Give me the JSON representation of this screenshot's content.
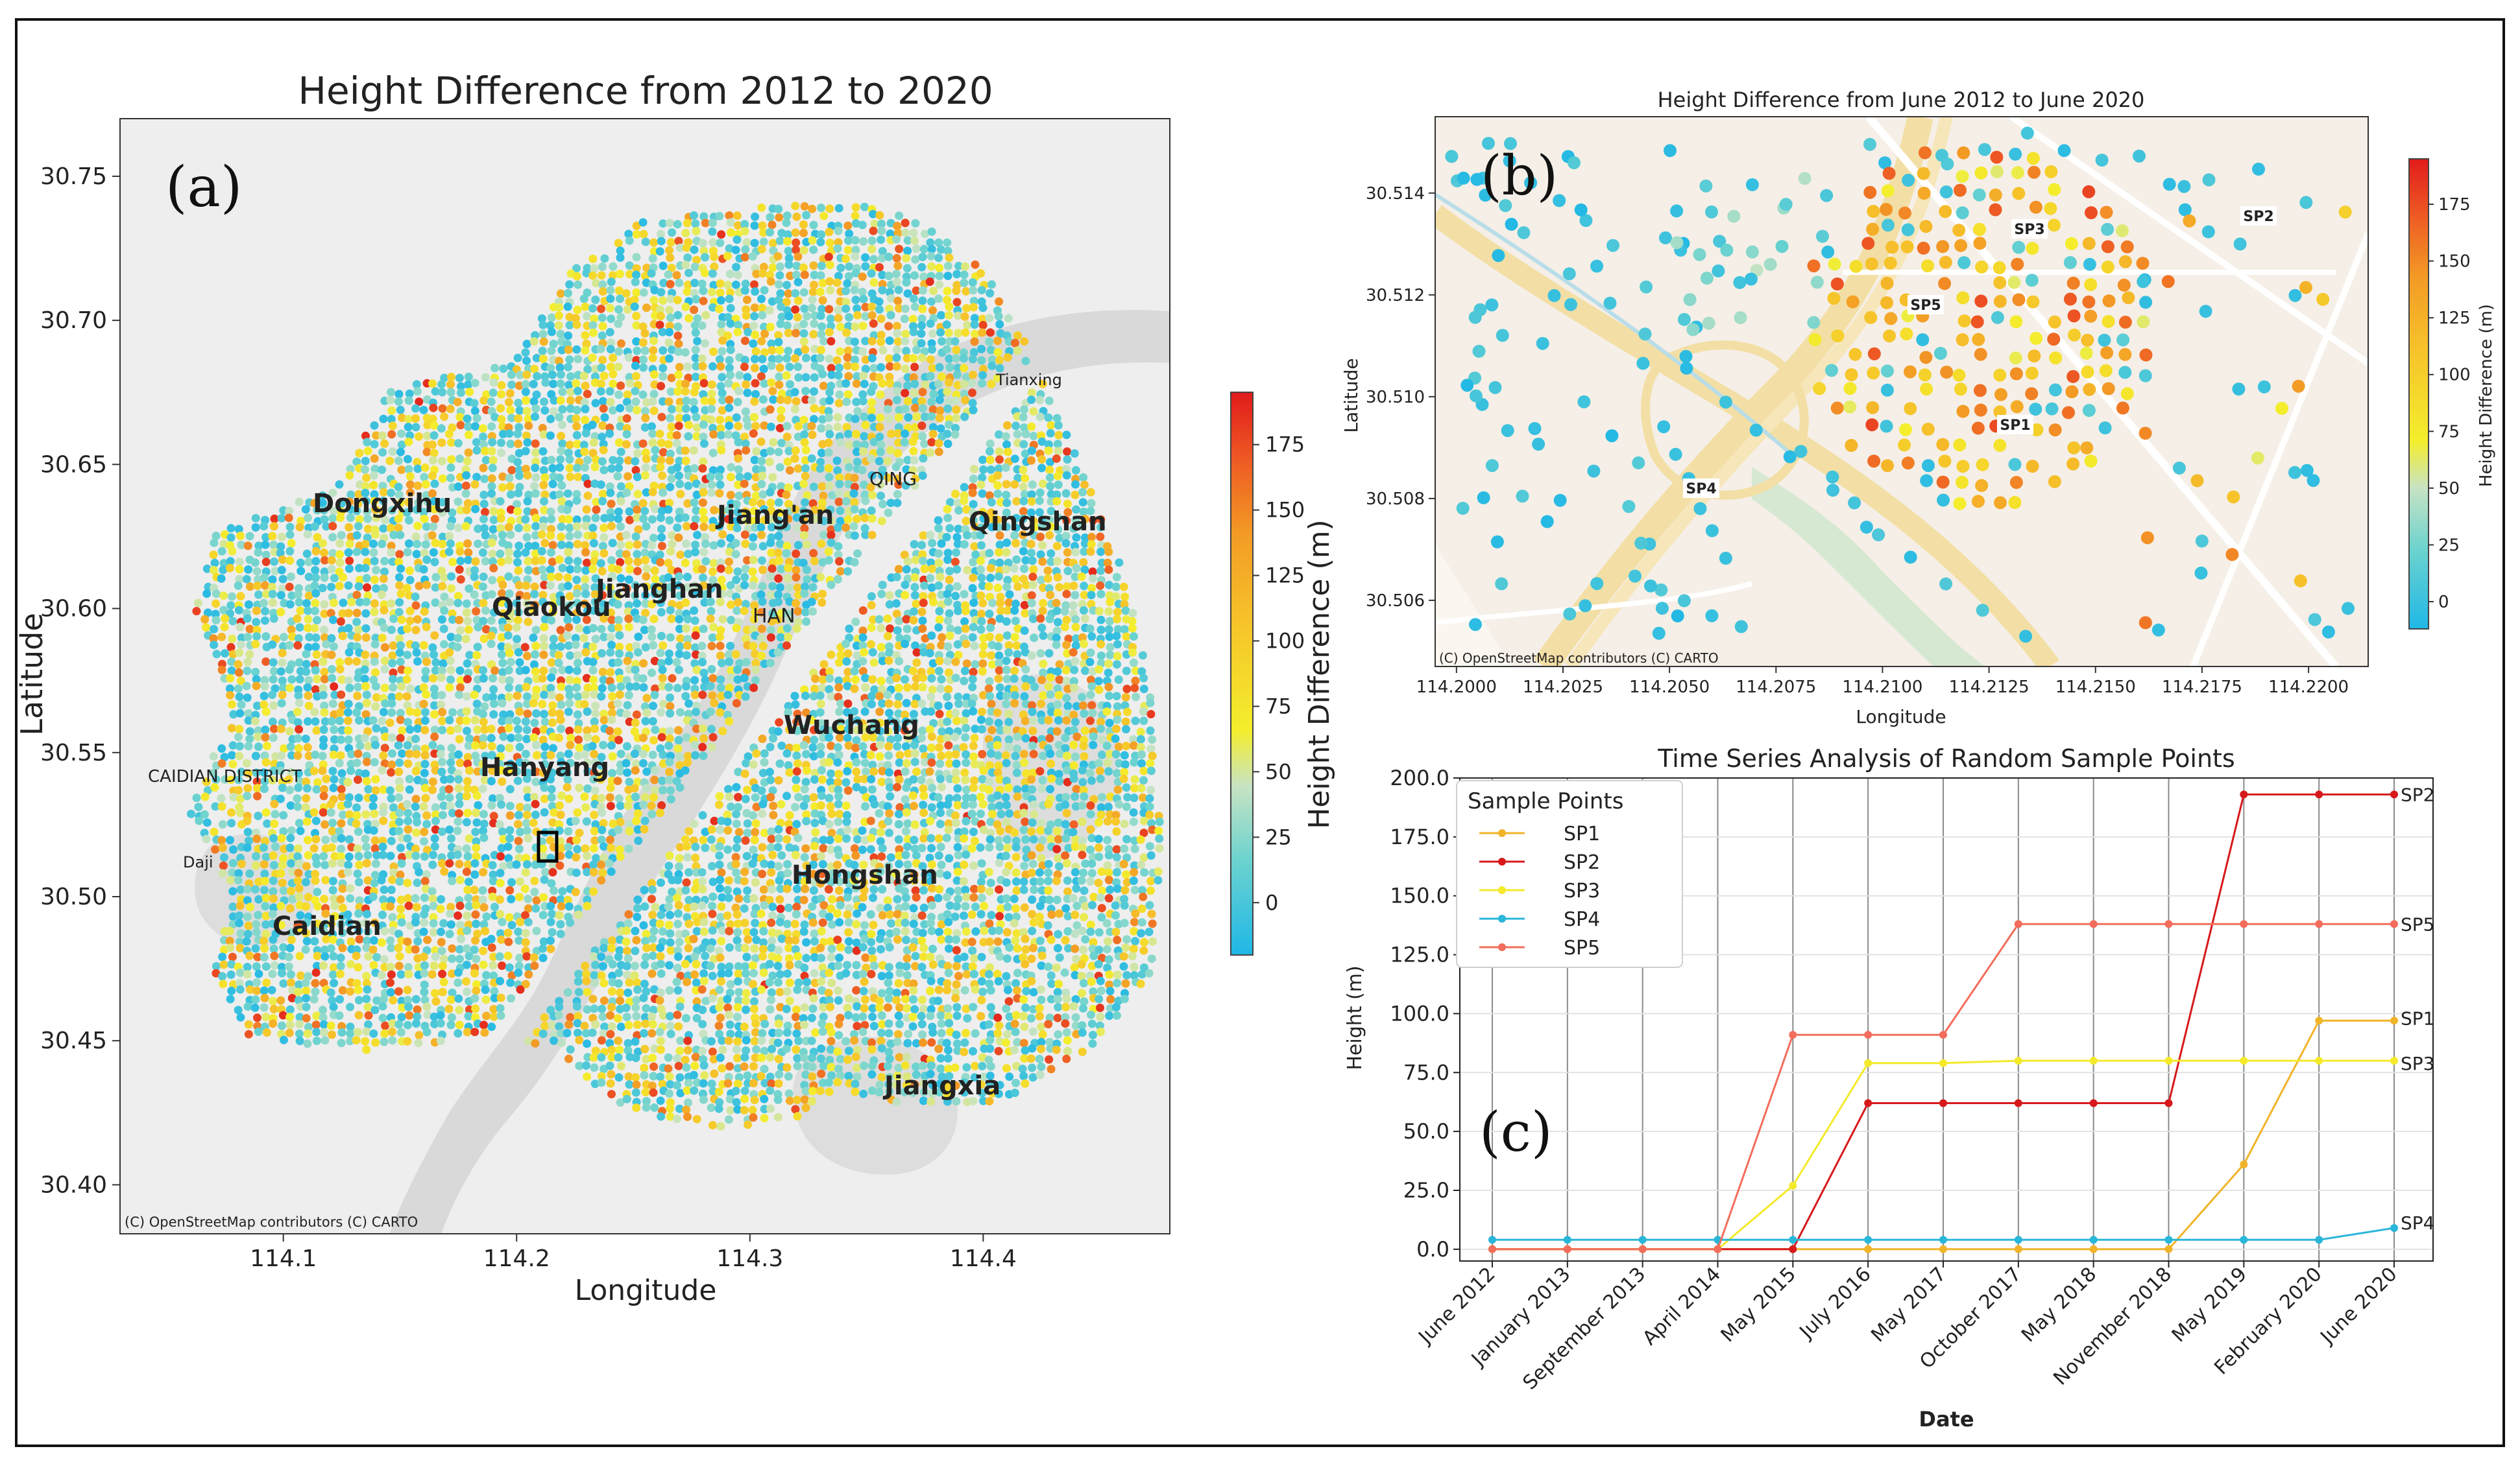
{
  "panel_a": {
    "label": "(a)",
    "title": "Height Difference from 2012 to 2020",
    "xlabel": "Longitude",
    "ylabel": "Latitude",
    "xticks": [
      "114.1",
      "114.2",
      "114.3",
      "114.4"
    ],
    "yticks": [
      "30.75",
      "30.70",
      "30.65",
      "30.60",
      "30.55",
      "30.50",
      "30.45",
      "30.40"
    ],
    "xlim": [
      114.03,
      114.48
    ],
    "ylim": [
      30.383,
      30.77
    ],
    "attribution": "(C) OpenStreetMap contributors (C) CARTO",
    "districts": [
      "Dongxihu",
      "Jiang'an",
      "Qingshan",
      "Qiaokou",
      "Jianghan",
      "Wuchang",
      "Hanyang",
      "Hongshan",
      "Caidian",
      "Jiangxia"
    ],
    "basemap_labels": [
      "Tianxing",
      "CAIDIAN DISTRICT",
      "Daji",
      "QING",
      "HAN"
    ],
    "colorbar": {
      "label": "Height Difference (m)",
      "ticks": [
        "0",
        "25",
        "50",
        "75",
        "100",
        "125",
        "150",
        "175"
      ],
      "min": -20,
      "max": 195
    }
  },
  "panel_b": {
    "label": "(b)",
    "title": "Height Difference from June 2012 to June 2020",
    "xlabel": "Longitude",
    "ylabel": "Latitude",
    "xticks": [
      "114.2000",
      "114.2025",
      "114.2050",
      "114.2075",
      "114.2100",
      "114.2125",
      "114.2150",
      "114.2175",
      "114.2200"
    ],
    "yticks": [
      "30.514",
      "30.512",
      "30.510",
      "30.508",
      "30.506"
    ],
    "xlim": [
      114.1995,
      114.2214
    ],
    "ylim": [
      30.5047,
      30.5155
    ],
    "attribution": "(C) OpenStreetMap contributors (C) CARTO",
    "sample_labels": [
      "SP1",
      "SP2",
      "SP3",
      "SP4",
      "SP5"
    ],
    "colorbar": {
      "label": "Height Difference (m)",
      "ticks": [
        "0",
        "25",
        "50",
        "75",
        "100",
        "125",
        "150",
        "175"
      ],
      "min": -12,
      "max": 195
    }
  },
  "chart_data": [
    {
      "type": "heatmap",
      "title": "Height Difference from 2012 to 2020",
      "xlabel": "Longitude",
      "ylabel": "Latitude",
      "xlim": [
        114.03,
        114.48
      ],
      "ylim": [
        30.383,
        30.77
      ],
      "value_range": [
        -20,
        195
      ],
      "colorbar_label": "Height Difference (m)"
    },
    {
      "type": "scatter",
      "title": "Height Difference from June 2012 to June 2020",
      "xlabel": "Longitude",
      "ylabel": "Latitude",
      "xlim": [
        114.1995,
        114.2214
      ],
      "ylim": [
        30.5047,
        30.5155
      ],
      "points_labeled": [
        {
          "name": "SP1",
          "lon": 114.2124,
          "lat": 30.5095
        },
        {
          "name": "SP2",
          "lon": 114.2186,
          "lat": 30.5139
        },
        {
          "name": "SP3",
          "lon": 114.213,
          "lat": 30.5136
        },
        {
          "name": "SP4",
          "lon": 114.2047,
          "lat": 30.5081
        },
        {
          "name": "SP5",
          "lon": 114.2105,
          "lat": 30.512
        }
      ]
    },
    {
      "type": "line",
      "title": "Time Series Analysis of Random Sample Points",
      "xlabel": "Date",
      "ylabel": "Height (m)",
      "ylim": [
        -5,
        200
      ],
      "yticks": [
        "0.0",
        "25.0",
        "50.0",
        "75.0",
        "100.0",
        "125.0",
        "150.0",
        "175.0",
        "200.0"
      ],
      "x": [
        "June 2012",
        "January 2013",
        "September 2013",
        "April 2014",
        "May 2015",
        "July 2016",
        "May 2017",
        "October 2017",
        "May 2018",
        "November 2018",
        "May 2019",
        "February 2020",
        "June 2020"
      ],
      "legend_title": "Sample Points",
      "label": "(c)",
      "series": [
        {
          "name": "SP1",
          "color": "#f0b429",
          "values": [
            0,
            0,
            0,
            0,
            0,
            0,
            0,
            0,
            0,
            0,
            36,
            97,
            97
          ]
        },
        {
          "name": "SP2",
          "color": "#d7191c",
          "values": [
            0,
            0,
            0,
            0,
            0,
            62,
            62,
            62,
            62,
            62,
            193,
            193,
            193
          ]
        },
        {
          "name": "SP3",
          "color": "#f4ea2a",
          "values": [
            0,
            0,
            0,
            0,
            27,
            79,
            79,
            80,
            80,
            80,
            80,
            80,
            80
          ]
        },
        {
          "name": "SP4",
          "color": "#29b6d9",
          "values": [
            4,
            4,
            4,
            4,
            4,
            4,
            4,
            4,
            4,
            4,
            4,
            4,
            9
          ]
        },
        {
          "name": "SP5",
          "color": "#f26d5b",
          "values": [
            0,
            0,
            0,
            0,
            91,
            91,
            91,
            138,
            138,
            138,
            138,
            138,
            138
          ]
        }
      ]
    }
  ]
}
